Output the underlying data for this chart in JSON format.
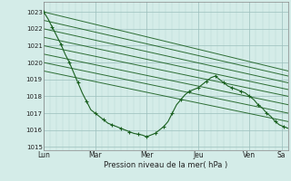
{
  "bg_color": "#d4ece8",
  "grid_minor_color": "#b8d8d4",
  "grid_major_color": "#9bbfbc",
  "line_color": "#1a6020",
  "marker_color": "#1a6020",
  "ylabel_ticks": [
    1015,
    1016,
    1017,
    1018,
    1019,
    1020,
    1021,
    1022,
    1023
  ],
  "ylim": [
    1014.8,
    1023.6
  ],
  "xlabel": "Pression niveau de la mer( hPa )",
  "day_labels": [
    "Lun",
    "Mar",
    "Mer",
    "Jeu",
    "Ven",
    "Sa"
  ],
  "day_positions": [
    0,
    24,
    48,
    72,
    96,
    111
  ],
  "total_hours": 114,
  "main_x": [
    0,
    2,
    4,
    6,
    8,
    10,
    12,
    14,
    16,
    18,
    20,
    22,
    24,
    26,
    28,
    30,
    32,
    34,
    36,
    38,
    40,
    42,
    44,
    46,
    48,
    50,
    52,
    54,
    56,
    58,
    60,
    62,
    64,
    66,
    68,
    70,
    72,
    74,
    76,
    78,
    80,
    82,
    84,
    86,
    88,
    90,
    92,
    94,
    96,
    98,
    100,
    102,
    104,
    106,
    108,
    110,
    112,
    114
  ],
  "main_y": [
    1023.0,
    1022.6,
    1022.1,
    1021.6,
    1021.1,
    1020.5,
    1020.0,
    1019.4,
    1018.8,
    1018.2,
    1017.7,
    1017.2,
    1017.0,
    1016.8,
    1016.6,
    1016.4,
    1016.3,
    1016.2,
    1016.1,
    1016.0,
    1015.9,
    1015.8,
    1015.75,
    1015.7,
    1015.6,
    1015.7,
    1015.8,
    1016.0,
    1016.2,
    1016.5,
    1017.0,
    1017.5,
    1017.8,
    1018.1,
    1018.3,
    1018.4,
    1018.5,
    1018.7,
    1018.9,
    1019.1,
    1019.2,
    1019.0,
    1018.8,
    1018.6,
    1018.5,
    1018.4,
    1018.3,
    1018.2,
    1018.0,
    1017.8,
    1017.5,
    1017.3,
    1017.0,
    1016.8,
    1016.5,
    1016.3,
    1016.2,
    1016.1
  ],
  "ensemble_lines": [
    {
      "x": [
        0,
        114
      ],
      "y": [
        1023.0,
        1019.5
      ]
    },
    {
      "x": [
        0,
        114
      ],
      "y": [
        1022.5,
        1019.2
      ]
    },
    {
      "x": [
        0,
        114
      ],
      "y": [
        1022.0,
        1018.8
      ]
    },
    {
      "x": [
        0,
        114
      ],
      "y": [
        1021.5,
        1018.4
      ]
    },
    {
      "x": [
        0,
        114
      ],
      "y": [
        1021.0,
        1018.0
      ]
    },
    {
      "x": [
        0,
        114
      ],
      "y": [
        1020.5,
        1017.5
      ]
    },
    {
      "x": [
        0,
        114
      ],
      "y": [
        1020.0,
        1017.0
      ]
    },
    {
      "x": [
        0,
        114
      ],
      "y": [
        1019.5,
        1016.5
      ]
    }
  ],
  "figsize": [
    3.2,
    2.0
  ],
  "dpi": 100
}
